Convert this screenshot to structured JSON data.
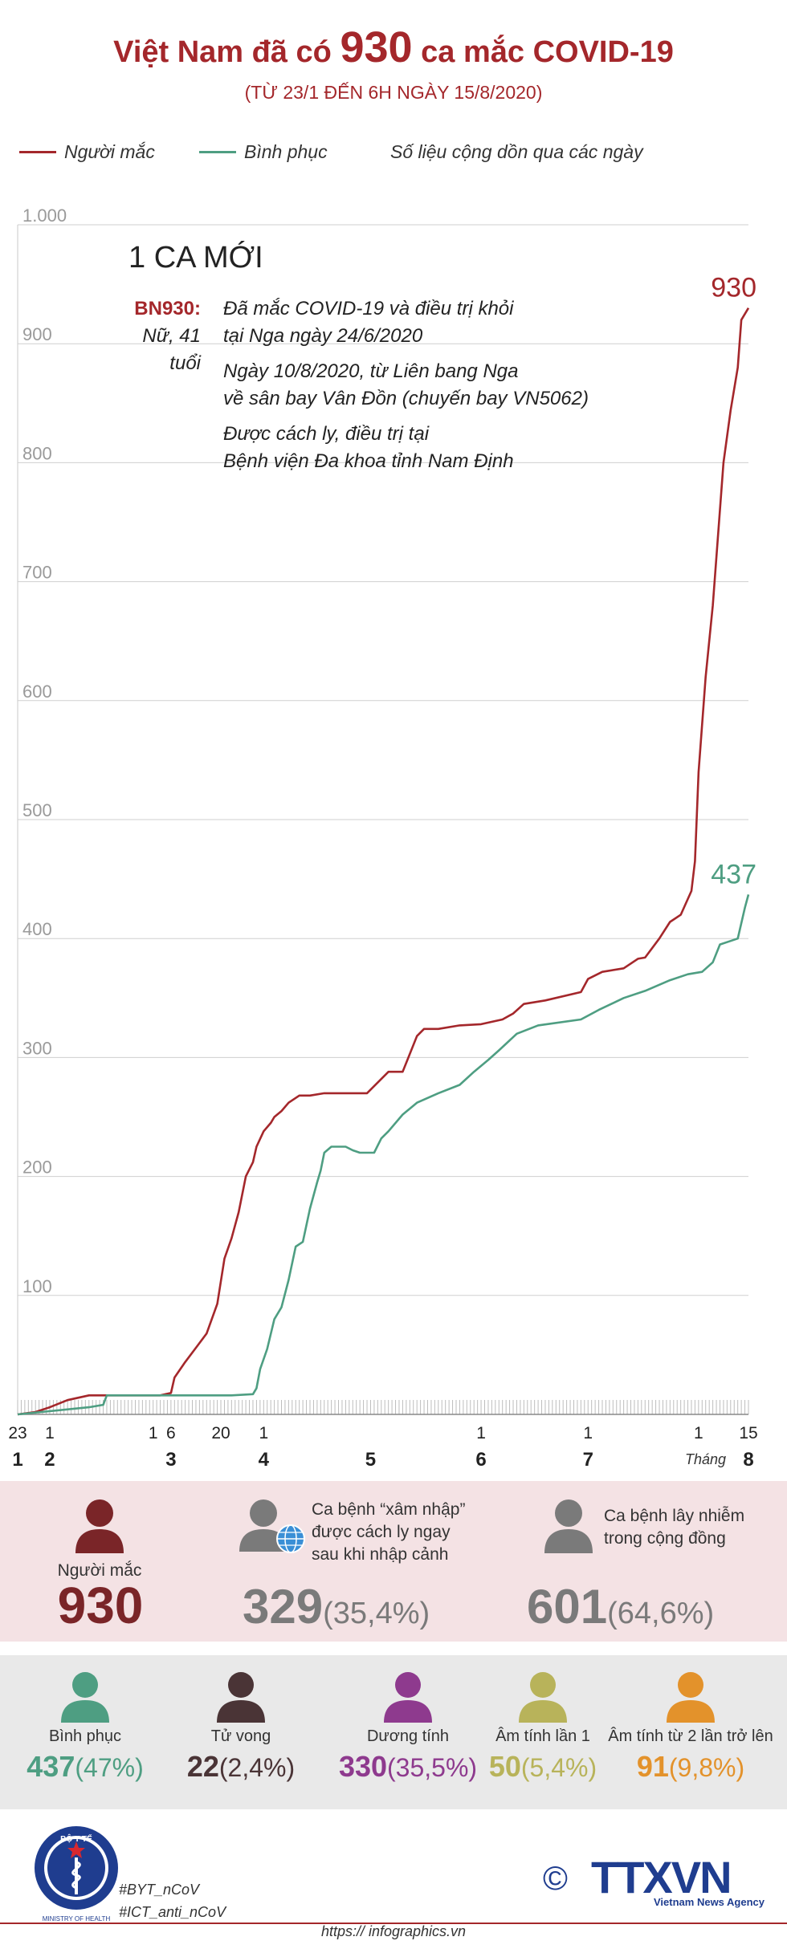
{
  "header": {
    "title_prefix": "Việt Nam đã có",
    "title_number": "930",
    "title_suffix": "ca mắc COVID-19",
    "subtitle": "(TỪ 23/1 ĐẾN 6H NGÀY 15/8/2020)"
  },
  "legend": {
    "cases": "Người mắc",
    "recovered": "Bình phục",
    "note": "Số liệu cộng dồn qua các ngày"
  },
  "colors": {
    "cases": "#a4272b",
    "recovered": "#4e9e82",
    "title": "#a4272b"
  },
  "chart_data": {
    "type": "line",
    "title": "Việt Nam đã có 930 ca mắc COVID-19",
    "ylim": [
      0,
      1000
    ],
    "yticks": [
      "1.000",
      "900",
      "800",
      "700",
      "600",
      "500",
      "400",
      "300",
      "200",
      "100"
    ],
    "x_unit": "day index from 23/1/2020",
    "xlim": [
      0,
      205
    ],
    "x_ticks": [
      {
        "day": 0,
        "day_label": "23",
        "month_label": "1"
      },
      {
        "day": 9,
        "day_label": "1",
        "month_label": "2"
      },
      {
        "day": 38,
        "day_label": "1",
        "month_label": ""
      },
      {
        "day": 43,
        "day_label": "6",
        "month_label": "3"
      },
      {
        "day": 57,
        "day_label": "20",
        "month_label": ""
      },
      {
        "day": 69,
        "day_label": "1",
        "month_label": "4"
      },
      {
        "day": 99,
        "day_label": "",
        "month_label": "5"
      },
      {
        "day": 130,
        "day_label": "1",
        "month_label": "6"
      },
      {
        "day": 160,
        "day_label": "1",
        "month_label": "7"
      },
      {
        "day": 191,
        "day_label": "1",
        "month_label": ""
      },
      {
        "day": 205,
        "day_label": "15",
        "month_label": "8"
      }
    ],
    "month_axis_label": "Tháng",
    "series": [
      {
        "name": "Người mắc",
        "end_label": "930",
        "x": [
          0,
          5,
          9,
          14,
          20,
          30,
          40,
          43,
          44,
          47,
          50,
          53,
          56,
          58,
          60,
          62,
          64,
          66,
          67,
          69,
          71,
          72,
          74,
          76,
          79,
          82,
          86,
          92,
          98,
          104,
          106,
          108,
          112,
          114,
          118,
          124,
          130,
          136,
          139,
          142,
          148,
          158,
          160,
          164,
          170,
          174,
          176,
          180,
          183,
          186,
          189,
          190,
          191,
          193,
          195,
          198,
          200,
          202,
          203,
          205
        ],
        "y": [
          0,
          2,
          6,
          12,
          16,
          16,
          16,
          18,
          31,
          44,
          56,
          68,
          93,
          131,
          148,
          170,
          200,
          212,
          225,
          238,
          245,
          250,
          255,
          262,
          268,
          268,
          270,
          270,
          270,
          288,
          288,
          288,
          318,
          324,
          324,
          327,
          328,
          332,
          337,
          345,
          348,
          355,
          366,
          372,
          375,
          383,
          384,
          400,
          414,
          420,
          440,
          465,
          540,
          620,
          680,
          800,
          844,
          880,
          920,
          930
        ]
      },
      {
        "name": "Bình phục",
        "end_label": "437",
        "x": [
          0,
          20,
          24,
          25,
          40,
          45,
          60,
          66,
          67,
          68,
          70,
          72,
          74,
          76,
          78,
          80,
          82,
          84,
          85,
          86,
          88,
          90,
          92,
          94,
          96,
          100,
          102,
          104,
          108,
          112,
          118,
          124,
          128,
          132,
          135,
          140,
          146,
          158,
          163,
          170,
          176,
          183,
          188,
          192,
          195,
          197,
          200,
          202,
          204,
          205
        ],
        "y": [
          0,
          6,
          8,
          16,
          16,
          16,
          16,
          17,
          22,
          38,
          55,
          80,
          90,
          113,
          141,
          145,
          173,
          195,
          205,
          220,
          225,
          225,
          225,
          222,
          220,
          220,
          232,
          238,
          252,
          262,
          270,
          277,
          288,
          298,
          306,
          320,
          327,
          332,
          340,
          350,
          356,
          365,
          370,
          372,
          380,
          395,
          398,
          400,
          426,
          437
        ]
      }
    ]
  },
  "new_case": {
    "heading": "1 CA MỚI",
    "patient_id": "BN930:",
    "patient_info": "Nữ, 41 tuổi",
    "lines": [
      "Đã mắc COVID-19 và điều trị khỏi",
      "tại Nga ngày 24/6/2020",
      "Ngày 10/8/2020, từ Liên bang Nga",
      "về sân bay Vân Đồn (chuyến bay VN5062)",
      "Được cách ly, điều trị tại",
      "Bệnh viện Đa khoa tỉnh Nam Định"
    ]
  },
  "summary": {
    "total_label": "Người mắc",
    "total_value": "930",
    "imported_label_1": "Ca bệnh “xâm nhập”",
    "imported_label_2": "được cách ly ngay",
    "imported_label_3": "sau khi nhập cảnh",
    "imported_value": "329",
    "imported_pct": "(35,4%)",
    "community_label_1": "Ca bệnh lây nhiễm",
    "community_label_2": "trong cộng đồng",
    "community_value": "601",
    "community_pct": "(64,6%)"
  },
  "breakdown": [
    {
      "label": "Bình phục",
      "value": "437",
      "pct": "(47%)",
      "color": "#4e9e82"
    },
    {
      "label": "Tử vong",
      "value": "22",
      "pct": "(2,4%)",
      "color": "#4a3436"
    },
    {
      "label": "Dương tính",
      "value": "330",
      "pct": "(35,5%)",
      "color": "#8e3a8e"
    },
    {
      "label": "Âm tính lần 1",
      "value": "50",
      "pct": "(5,4%)",
      "color": "#b8b35a"
    },
    {
      "label": "Âm tính từ 2 lần trở lên",
      "value": "91",
      "pct": "(9,8%)",
      "color": "#e3922b"
    }
  ],
  "footer": {
    "logo_text": "BỘ Y TẾ",
    "logo_subtext": "MINISTRY OF HEALTH",
    "hashtag_1": "#BYT_nCoV",
    "hashtag_2": "#ICT_anti_nCoV",
    "copyright": "©",
    "agency": "TTXVN",
    "agency_sub": "Vietnam News Agency",
    "url": "https:// infographics.vn"
  }
}
